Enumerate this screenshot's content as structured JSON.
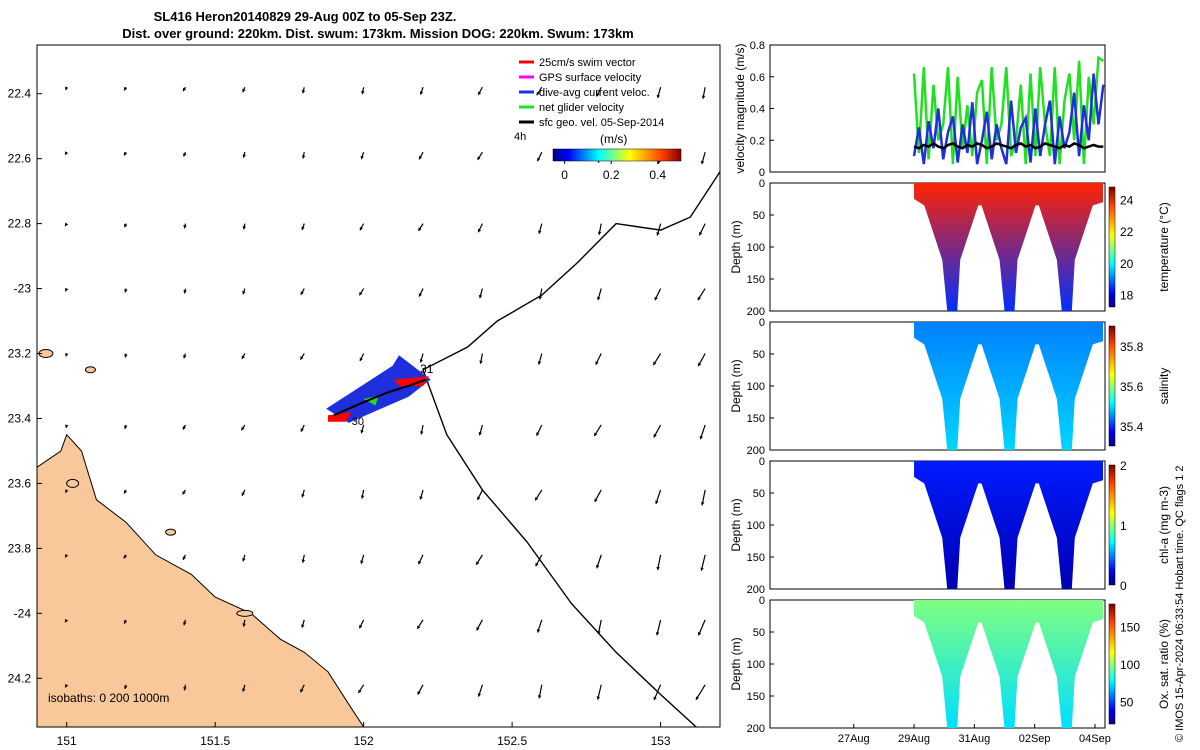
{
  "title": {
    "line1": "SL416 Heron20140829 29-Aug 00Z to 05-Sep 23Z.",
    "line2": "Dist. over ground: 220km. Dist. swum: 173km. Mission DOG: 220km. Swum: 173km"
  },
  "credit": "© IMOS 15-Apr-2024 06:33:54 Hobart time. QC flags 1  2",
  "colors": {
    "land": "#f8c89b",
    "track": "#000000",
    "swim_vector": "#ff0000",
    "gps_velocity": "#ff00ff",
    "current": "#1f2fdc",
    "glider_velocity": "#21e021",
    "sfc_geo": "#000000"
  },
  "chart_data": [
    {
      "type": "map",
      "xlim": [
        150.9,
        153.2
      ],
      "ylim": [
        -24.35,
        -22.25
      ],
      "xticks": [
        151,
        151.5,
        152,
        152.5,
        153
      ],
      "xtick_labels": [
        "151",
        "151.5",
        "152",
        "152.5",
        "153"
      ],
      "yticks": [
        -22.4,
        -22.6,
        -22.8,
        -23,
        -23.2,
        -23.4,
        -23.6,
        -23.8,
        -24,
        -24.2
      ],
      "ytick_labels": [
        "22.4",
        "22.6",
        "22.8",
        "-23",
        "23.2",
        "23.4",
        "23.6",
        "23.8",
        "-24",
        "24.2"
      ],
      "isobaths_label": "isobaths: 0   200  1000m",
      "legend": [
        {
          "label": "25cm/s swim vector",
          "color": "#ff0000"
        },
        {
          "label": "GPS surface velocity",
          "color": "#ff00ff"
        },
        {
          "label": "dive-avg current veloc.",
          "color": "#1f2fdc"
        },
        {
          "label": "net glider velocity",
          "color": "#21e021"
        },
        {
          "label": "sfc geo. vel. 05-Sep-2014",
          "color": "#000000"
        }
      ],
      "colorbar": {
        "label": "(m/s)",
        "side_label": "4h",
        "range": [
          -0.05,
          0.5
        ],
        "ticks": [
          0,
          0.2,
          0.4
        ],
        "tick_labels": [
          "0",
          "0.2",
          "0.4"
        ]
      },
      "track_labels": [
        "31",
        "30"
      ],
      "isobath_1000m": [
        [
          153.2,
          -22.64
        ],
        [
          153.1,
          -22.78
        ],
        [
          153.0,
          -22.82
        ],
        [
          152.85,
          -22.8
        ],
        [
          152.72,
          -22.92
        ],
        [
          152.6,
          -23.02
        ],
        [
          152.45,
          -23.1
        ],
        [
          152.35,
          -23.18
        ],
        [
          152.2,
          -23.25
        ],
        [
          152.28,
          -23.45
        ],
        [
          152.4,
          -23.62
        ],
        [
          152.55,
          -23.78
        ],
        [
          152.7,
          -23.97
        ],
        [
          152.85,
          -24.12
        ],
        [
          153.0,
          -24.25
        ],
        [
          153.12,
          -24.35
        ]
      ],
      "glider_track": [
        [
          151.9,
          -23.39
        ],
        [
          152.0,
          -23.35
        ],
        [
          152.08,
          -23.32
        ],
        [
          152.15,
          -23.3
        ],
        [
          152.21,
          -23.28
        ]
      ],
      "coastline": [
        [
          150.9,
          -23.55
        ],
        [
          150.98,
          -23.5
        ],
        [
          151.0,
          -23.45
        ],
        [
          151.05,
          -23.5
        ],
        [
          151.1,
          -23.65
        ],
        [
          151.2,
          -23.72
        ],
        [
          151.3,
          -23.82
        ],
        [
          151.42,
          -23.88
        ],
        [
          151.5,
          -23.95
        ],
        [
          151.62,
          -24.0
        ],
        [
          151.72,
          -24.08
        ],
        [
          151.8,
          -24.12
        ],
        [
          151.88,
          -24.18
        ],
        [
          151.95,
          -24.28
        ],
        [
          152.0,
          -24.35
        ]
      ],
      "surface_vectors_note": "southward-southwest geostrophic velocity arrows on a regular grid"
    },
    {
      "type": "line",
      "ylabel": "velocity magnitude (m/s)",
      "ylim": [
        0,
        0.8
      ],
      "yticks": [
        0,
        0.2,
        0.4,
        0.6,
        0.8
      ],
      "x_start": "29Aug",
      "series": [
        {
          "color": "#21e021",
          "values": [
            0.62,
            0.12,
            0.66,
            0.08,
            0.55,
            0.2,
            0.3,
            0.66,
            0.05,
            0.6,
            0.15,
            0.42,
            0.1,
            0.5,
            0.58,
            0.05,
            0.66,
            0.2,
            0.3,
            0.66,
            0.1,
            0.2,
            0.55,
            0.05,
            0.62,
            0.1,
            0.66,
            0.3,
            0.1,
            0.66,
            0.05,
            0.45,
            0.62,
            0.2,
            0.7,
            0.05,
            0.6,
            0.3,
            0.72,
            0.7
          ]
        },
        {
          "color": "#1f2fdc",
          "values": [
            0.1,
            0.28,
            0.05,
            0.32,
            0.15,
            0.4,
            0.08,
            0.25,
            0.35,
            0.06,
            0.3,
            0.12,
            0.44,
            0.05,
            0.2,
            0.38,
            0.08,
            0.3,
            0.15,
            0.05,
            0.45,
            0.12,
            0.28,
            0.34,
            0.06,
            0.4,
            0.1,
            0.3,
            0.45,
            0.05,
            0.35,
            0.15,
            0.25,
            0.5,
            0.1,
            0.42,
            0.2,
            0.62,
            0.3,
            0.55
          ]
        },
        {
          "color": "#000000",
          "values": [
            0.16,
            0.15,
            0.17,
            0.16,
            0.18,
            0.16,
            0.15,
            0.17,
            0.18,
            0.16,
            0.15,
            0.17,
            0.16,
            0.18,
            0.17,
            0.15,
            0.16,
            0.18,
            0.17,
            0.16,
            0.15,
            0.17,
            0.18,
            0.16,
            0.17,
            0.15,
            0.16,
            0.18,
            0.17,
            0.16,
            0.15,
            0.17,
            0.16,
            0.18,
            0.17,
            0.15,
            0.16,
            0.17,
            0.16,
            0.16
          ]
        }
      ]
    },
    {
      "type": "heatmap",
      "variable": "temperature",
      "colorbar_label": "temperature (°C)",
      "clim": [
        17.2,
        24.8
      ],
      "colorbar_ticks": [
        18,
        20,
        22,
        24
      ],
      "ylabel": "Depth (m)",
      "ylim": [
        200,
        0
      ],
      "yticks": [
        0,
        50,
        100,
        150,
        200
      ],
      "surface_value": 23.6,
      "deep_value": 18.5,
      "dives": [
        {
          "center": 0.2,
          "depth": 200
        },
        {
          "center": 0.5,
          "depth": 200
        },
        {
          "center": 0.8,
          "depth": 200
        }
      ]
    },
    {
      "type": "heatmap",
      "variable": "salinity",
      "colorbar_label": "salinity",
      "clim": [
        35.3,
        35.9
      ],
      "colorbar_ticks": [
        35.4,
        35.6,
        35.8
      ],
      "ylabel": "Depth (m)",
      "ylim": [
        200,
        0
      ],
      "yticks": [
        0,
        50,
        100,
        150,
        200
      ],
      "surface_value": 35.45,
      "deep_value": 35.5,
      "dives": [
        {
          "center": 0.2,
          "depth": 200
        },
        {
          "center": 0.5,
          "depth": 200
        },
        {
          "center": 0.8,
          "depth": 200
        }
      ]
    },
    {
      "type": "heatmap",
      "variable": "chl-a",
      "colorbar_label": "chl-a (mg m-3)",
      "clim": [
        0,
        2
      ],
      "colorbar_ticks": [
        0,
        1,
        2
      ],
      "ylabel": "Depth (m)",
      "ylim": [
        200,
        0
      ],
      "yticks": [
        0,
        50,
        100,
        150,
        200
      ],
      "surface_value": 0.3,
      "deep_value": 0.1,
      "dives": [
        {
          "center": 0.2,
          "depth": 200
        },
        {
          "center": 0.5,
          "depth": 200
        },
        {
          "center": 0.8,
          "depth": 200
        }
      ]
    },
    {
      "type": "heatmap",
      "variable": "oxygen saturation",
      "colorbar_label": "Ox. sat. ratio (%)",
      "clim": [
        20,
        180
      ],
      "colorbar_ticks": [
        50,
        100,
        150
      ],
      "ylabel": "Depth (m)",
      "ylim": [
        200,
        0
      ],
      "yticks": [
        0,
        50,
        100,
        150,
        200
      ],
      "surface_value": 100,
      "deep_value": 75,
      "dives": [
        {
          "center": 0.2,
          "depth": 200
        },
        {
          "center": 0.5,
          "depth": 200
        },
        {
          "center": 0.8,
          "depth": 200
        }
      ]
    }
  ],
  "time_axis": {
    "tick_labels": [
      "27Aug",
      "29Aug",
      "31Aug",
      "02Sep",
      "04Sep"
    ],
    "tick_positions": [
      0.25,
      0.43,
      0.61,
      0.79,
      0.97
    ]
  }
}
